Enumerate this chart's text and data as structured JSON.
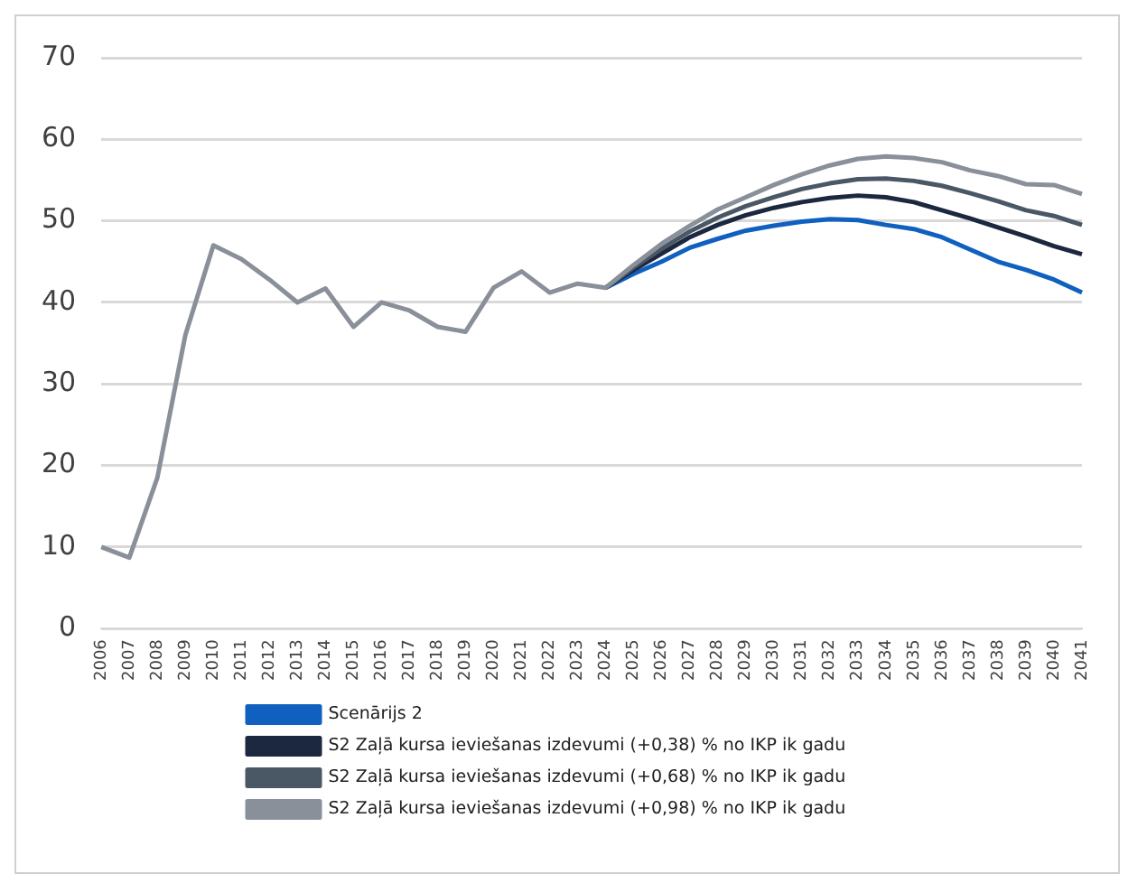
{
  "chart_data": {
    "type": "line",
    "categories": [
      "2006",
      "2007",
      "2008",
      "2009",
      "2010",
      "2011",
      "2012",
      "2013",
      "2014",
      "2015",
      "2016",
      "2017",
      "2018",
      "2019",
      "2020",
      "2021",
      "2022",
      "2023",
      "2024",
      "2025",
      "2026",
      "2027",
      "2028",
      "2029",
      "2030",
      "2031",
      "2032",
      "2033",
      "2034",
      "2035",
      "2036",
      "2037",
      "2038",
      "2039",
      "2040",
      "2041"
    ],
    "series": [
      {
        "name": "Scenārijs 2",
        "color": "#1060c0",
        "values": [
          null,
          null,
          null,
          null,
          null,
          null,
          null,
          null,
          null,
          null,
          null,
          null,
          null,
          null,
          null,
          null,
          null,
          null,
          41.8,
          43.5,
          45,
          46.7,
          47.8,
          48.8,
          49.4,
          49.9,
          50.2,
          50.1,
          49.5,
          49,
          48,
          46.5,
          45,
          44,
          42.8,
          41.2
        ]
      },
      {
        "name": "S2 Zaļā kursa ieviešanas izdevumi (+0,38) % no IKP ik gadu",
        "color": "#1c2840",
        "values": [
          null,
          null,
          null,
          null,
          null,
          null,
          null,
          null,
          null,
          null,
          null,
          null,
          null,
          null,
          null,
          null,
          null,
          null,
          41.8,
          44,
          46,
          48,
          49.5,
          50.7,
          51.6,
          52.3,
          52.8,
          53.1,
          52.9,
          52.3,
          51.3,
          50.3,
          49.2,
          48.1,
          46.9,
          45.9
        ]
      },
      {
        "name": "S2 Zaļā kursa ieviešanas izdevumi (+0,68) % no IKP ik gadu",
        "color": "#4a5866",
        "values": [
          null,
          null,
          null,
          null,
          null,
          null,
          null,
          null,
          null,
          null,
          null,
          null,
          null,
          null,
          null,
          null,
          null,
          null,
          41.8,
          44.3,
          46.6,
          48.7,
          50.4,
          51.8,
          52.9,
          53.9,
          54.6,
          55.1,
          55.2,
          54.9,
          54.3,
          53.4,
          52.4,
          51.3,
          50.6,
          49.5
        ]
      },
      {
        "name": "S2 Zaļā kursa ieviešanas izdevumi (+0,98) % no IKP ik gadu",
        "color": "#8a9099",
        "values": [
          10,
          8.7,
          18.5,
          36,
          47,
          45.3,
          42.8,
          40,
          41.7,
          37,
          40,
          39,
          37,
          36.4,
          41.8,
          43.8,
          41.2,
          42.3,
          41.8,
          44.6,
          47.2,
          49.4,
          51.4,
          52.9,
          54.4,
          55.7,
          56.8,
          57.6,
          57.9,
          57.7,
          57.2,
          56.2,
          55.5,
          54.5,
          54.4,
          53.3
        ]
      }
    ],
    "ylim": [
      0,
      70
    ],
    "yticks": [
      0,
      10,
      20,
      30,
      40,
      50,
      60,
      70
    ],
    "grid": "y",
    "legend": "bottom",
    "marker": "none",
    "line_style": "solid"
  }
}
